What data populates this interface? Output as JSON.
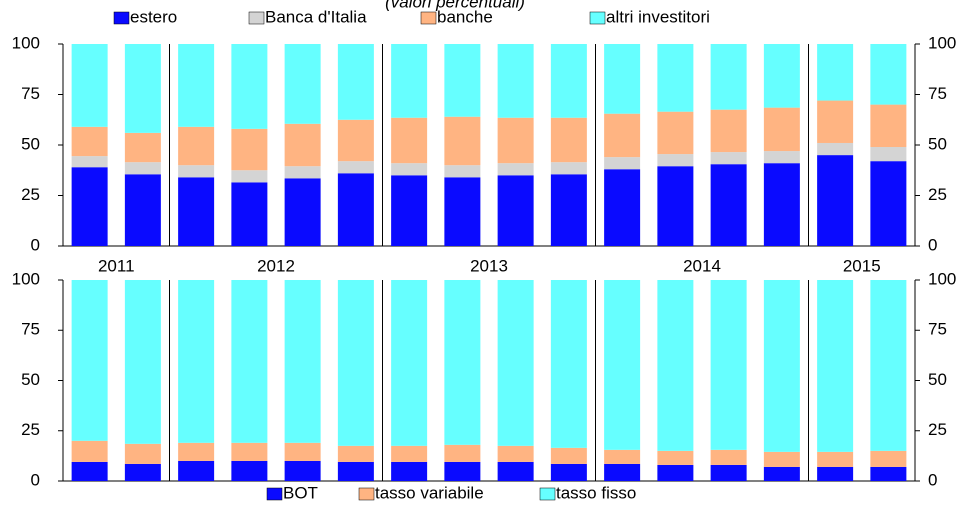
{
  "chart_data": [
    {
      "type": "bar",
      "stacked": true,
      "subtitle": "(valori percentuali)",
      "legend": "top",
      "categories": [
        "2011",
        null,
        "2012",
        null,
        null,
        null,
        "2013",
        null,
        null,
        null,
        "2014",
        null,
        null,
        null,
        "2015",
        null
      ],
      "series": [
        {
          "name": "estero",
          "color": "#0a0aff",
          "values": [
            39,
            35.5,
            34,
            31.5,
            33.5,
            36,
            35,
            34,
            35,
            35.5,
            38,
            39.5,
            40.5,
            41,
            45,
            42
          ]
        },
        {
          "name": "Banca d'Italia",
          "color": "#d4d4d4",
          "values": [
            5.5,
            6,
            6,
            6,
            6,
            6,
            6,
            6,
            6,
            6,
            6,
            6,
            6,
            6,
            6,
            7
          ]
        },
        {
          "name": "banche",
          "color": "#ffb482",
          "values": [
            14.5,
            14.5,
            19,
            20.5,
            21,
            20.5,
            22.5,
            24,
            22.5,
            22,
            21.5,
            21,
            21,
            21.5,
            21,
            21
          ]
        },
        {
          "name": "altri investitori",
          "color": "#66ffff",
          "values": [
            41,
            44,
            41,
            42,
            39.5,
            37.5,
            36.5,
            36,
            36.5,
            36.5,
            34.5,
            33.5,
            32.5,
            31.5,
            28,
            30
          ]
        }
      ],
      "ylim": [
        0,
        100
      ],
      "yticks": [
        0,
        25,
        50,
        75,
        100
      ]
    },
    {
      "type": "bar",
      "stacked": true,
      "legend": "bottom",
      "categories": [
        null,
        null,
        null,
        null,
        null,
        null,
        null,
        null,
        null,
        null,
        null,
        null,
        null,
        null,
        null,
        null
      ],
      "series": [
        {
          "name": "BOT",
          "color": "#0a0aff",
          "values": [
            9.5,
            8.5,
            10,
            10,
            10,
            9.5,
            9.5,
            9.5,
            9.5,
            8.5,
            8.5,
            8,
            8,
            7,
            7,
            7
          ]
        },
        {
          "name": "tasso variabile",
          "color": "#ffb482",
          "values": [
            10.5,
            10,
            9,
            9,
            9,
            8,
            8,
            8.5,
            8,
            8,
            7,
            7,
            7.5,
            7.5,
            7.5,
            8
          ]
        },
        {
          "name": "tasso fisso",
          "color": "#66ffff",
          "values": [
            80,
            81.5,
            81,
            81,
            81,
            82.5,
            82.5,
            82,
            82.5,
            83.5,
            84.5,
            85,
            84.5,
            85.5,
            85.5,
            85
          ]
        }
      ],
      "ylim": [
        0,
        100
      ],
      "yticks": [
        0,
        25,
        50,
        75,
        100
      ]
    }
  ]
}
